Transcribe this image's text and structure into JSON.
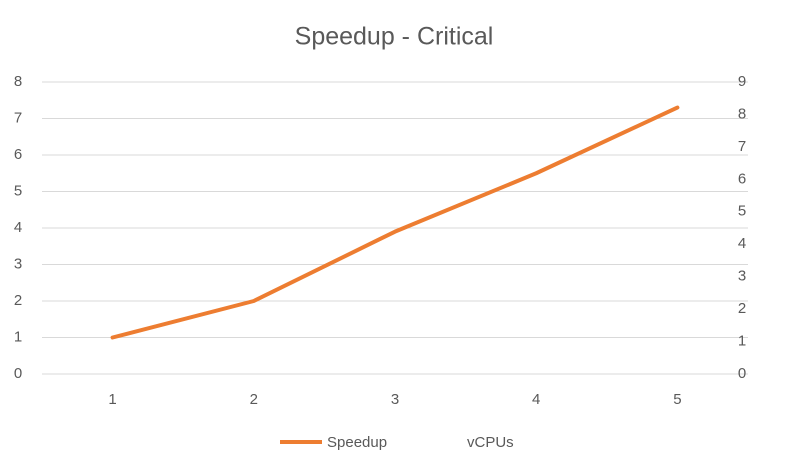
{
  "chart_data": {
    "type": "line",
    "title": "Speedup - Critical",
    "categories": [
      "1",
      "2",
      "3",
      "4",
      "5"
    ],
    "series": [
      {
        "name": "Speedup",
        "color": "#ed7d31",
        "values": [
          1,
          2,
          3.9,
          5.5,
          7.3
        ]
      },
      {
        "name": "vCPUs",
        "color": "none",
        "axis": "y2",
        "values": [
          null,
          null,
          null,
          null,
          null
        ]
      }
    ],
    "ylim": [
      0,
      8
    ],
    "yticks": [
      0,
      1,
      2,
      3,
      4,
      5,
      6,
      7,
      8
    ],
    "y2lim": [
      0,
      9
    ],
    "y2ticks": [
      0,
      1,
      2,
      3,
      4,
      5,
      6,
      7,
      8,
      9
    ],
    "grid": true,
    "legend": "bottom"
  }
}
